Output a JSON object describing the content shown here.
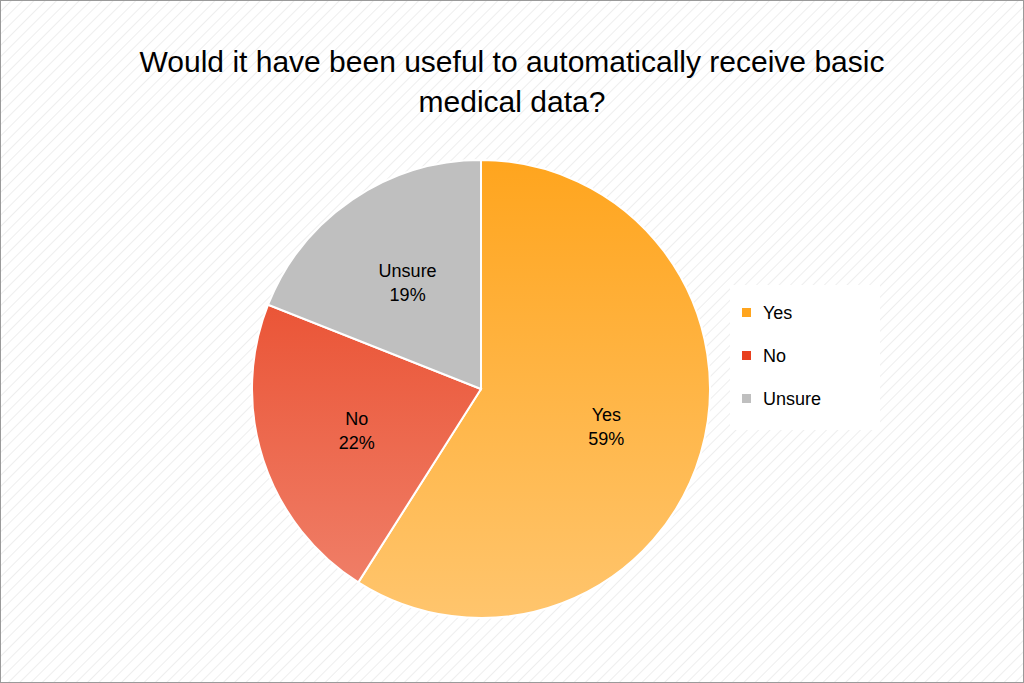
{
  "chart_data": {
    "type": "pie",
    "title": "Would it have been useful to automatically receive basic medical data?",
    "categories": [
      "Yes",
      "No",
      "Unsure"
    ],
    "values": [
      59,
      22,
      19
    ],
    "value_labels": [
      "59%",
      "22%",
      "19%"
    ],
    "colors": [
      "#ffa51e",
      "#e8401e",
      "#bfbfbf"
    ],
    "data_labels": true,
    "legend": "right"
  }
}
